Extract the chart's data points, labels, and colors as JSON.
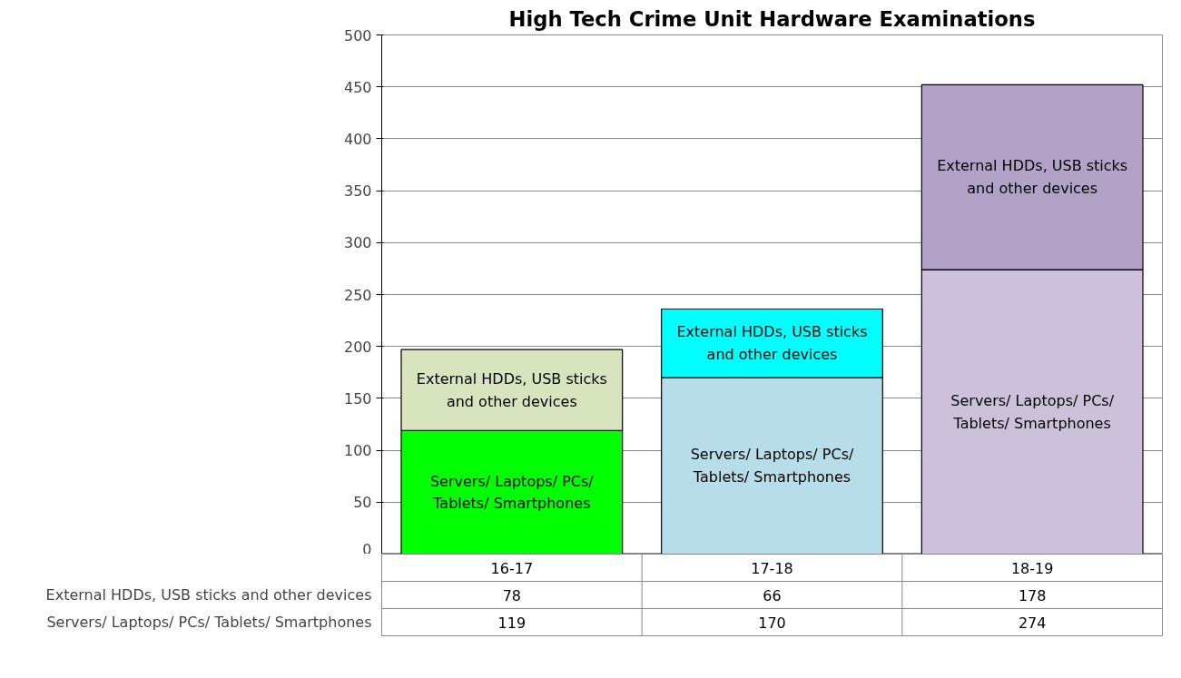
{
  "chart_data": {
    "type": "bar",
    "title": "High Tech Crime Unit Hardware Examinations",
    "categories": [
      "16-17",
      "17-18",
      "18-19"
    ],
    "stacked": true,
    "data_labels": true,
    "grid": "y",
    "ylim": [
      0,
      500
    ],
    "yticks": [
      0,
      50,
      100,
      150,
      200,
      250,
      300,
      350,
      400,
      450,
      500
    ],
    "series": [
      {
        "name": "Servers/ Laptops/ PCs/ Tablets/ Smartphones",
        "colors": [
          "#00ff00",
          "#b7dde8",
          "#ccc0da"
        ],
        "values": [
          119,
          170,
          274
        ]
      },
      {
        "name": "External HDDs, USB sticks and other devices",
        "colors": [
          "#d7e4bd",
          "#00ffff",
          "#b3a2c7"
        ],
        "values": [
          78,
          66,
          178
        ]
      }
    ]
  }
}
